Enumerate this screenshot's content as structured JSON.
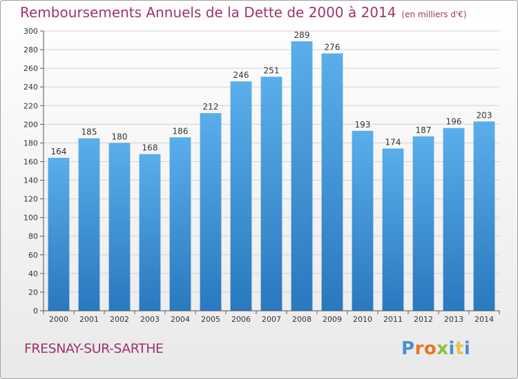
{
  "header": {
    "title": "Remboursements Annuels de la Dette de 2000 à 2014",
    "unit": "(en milliers d'€)"
  },
  "footer": {
    "commune": "FRESNAY-SUR-SARTHE",
    "logo_text": "Proxiti"
  },
  "colors": {
    "title": "#a0336a",
    "bar_light": "#5aaeea",
    "bar_dark": "#2a78be"
  },
  "chart_data": {
    "type": "bar",
    "title": "Remboursements Annuels de la Dette de 2000 à 2014",
    "xlabel": "",
    "ylabel": "",
    "categories": [
      "2000",
      "2001",
      "2002",
      "2003",
      "2004",
      "2005",
      "2006",
      "2007",
      "2008",
      "2009",
      "2010",
      "2011",
      "2012",
      "2013",
      "2014"
    ],
    "values": [
      164,
      185,
      180,
      168,
      186,
      212,
      246,
      251,
      289,
      276,
      193,
      174,
      187,
      196,
      203
    ],
    "ylim": [
      0,
      300
    ],
    "yticks": [
      0,
      20,
      40,
      60,
      80,
      100,
      120,
      140,
      160,
      180,
      200,
      220,
      240,
      260,
      280,
      300
    ],
    "grid": true,
    "data_labels": true
  }
}
